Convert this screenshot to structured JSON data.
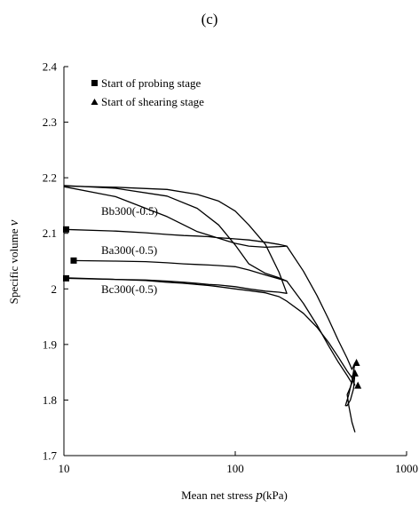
{
  "panel_label": "(c)",
  "chart_data": {
    "type": "line",
    "x_scale": "log",
    "xlim": [
      10,
      1000
    ],
    "ylim": [
      1.7,
      2.4
    ],
    "x_ticks": [
      10,
      100,
      1000
    ],
    "x_tick_labels": [
      "10",
      "100",
      "1000"
    ],
    "y_ticks": [
      1.7,
      1.8,
      1.9,
      2.0,
      2.1,
      2.2,
      2.3,
      2.4
    ],
    "y_tick_labels": [
      "1.7",
      "1.8",
      "1.9",
      "2",
      "2.1",
      "2.2",
      "2.3",
      "2.4"
    ],
    "xlabel": "Mean net stress",
    "xlabel_symbol": "p",
    "xlabel_unit": "(kPa)",
    "ylabel": "Specific volume",
    "ylabel_symbol": "v",
    "grid": false,
    "legend_position": "top-left",
    "legend": [
      {
        "marker": "square",
        "label": "Start of probing stage"
      },
      {
        "marker": "triangle",
        "label": "Start of shearing stage"
      }
    ],
    "annotations": [
      "Bb300(-0.5)",
      "Ba300(-0.5)",
      "Bc300(-0.5)"
    ],
    "series": [
      {
        "x": [
          10,
          20,
          30,
          40,
          50,
          60,
          70,
          80,
          90,
          100,
          120,
          150,
          180,
          200,
          180,
          150,
          120,
          100,
          80,
          60,
          40,
          20,
          10
        ],
        "y": [
          2.107,
          2.104,
          2.101,
          2.098,
          2.096,
          2.095,
          2.094,
          2.092,
          2.091,
          2.09,
          2.088,
          2.084,
          2.08,
          2.077,
          2.076,
          2.075,
          2.077,
          2.082,
          2.091,
          2.103,
          2.13,
          2.166,
          2.184
        ]
      },
      {
        "x": [
          11,
          20,
          30,
          40,
          50,
          60,
          70,
          80,
          100,
          120,
          150,
          180,
          200,
          180,
          150,
          120,
          100,
          80,
          60,
          40,
          20,
          10
        ],
        "y": [
          2.051,
          2.05,
          2.049,
          2.047,
          2.045,
          2.044,
          2.043,
          2.042,
          2.04,
          2.034,
          2.025,
          2.018,
          2.014,
          2.02,
          2.028,
          2.045,
          2.079,
          2.115,
          2.145,
          2.167,
          2.181,
          2.186
        ]
      },
      {
        "x": [
          10,
          20,
          30,
          40,
          50,
          60,
          70,
          80,
          100,
          120,
          150,
          180,
          200,
          180,
          150,
          120,
          100,
          80,
          60,
          40,
          20,
          10
        ],
        "y": [
          2.019,
          2.017,
          2.016,
          2.014,
          2.012,
          2.01,
          2.008,
          2.007,
          2.004,
          2.0,
          1.996,
          1.994,
          1.992,
          2.03,
          2.08,
          2.115,
          2.14,
          2.158,
          2.17,
          2.179,
          2.183,
          2.185
        ]
      },
      {
        "x": [
          10,
          20,
          30,
          40,
          50,
          60,
          70,
          80,
          100,
          120,
          150,
          180,
          200,
          250,
          300,
          350,
          400,
          450,
          480,
          500
        ],
        "y": [
          2.02,
          2.017,
          2.015,
          2.012,
          2.01,
          2.008,
          2.006,
          2.004,
          2.0,
          1.997,
          1.993,
          1.986,
          1.978,
          1.956,
          1.931,
          1.904,
          1.877,
          1.852,
          1.84,
          1.826
        ]
      },
      {
        "x": [
          200,
          250,
          300,
          350,
          400,
          450,
          480,
          500,
          480,
          460,
          440,
          450,
          470,
          490,
          500
        ],
        "y": [
          2.077,
          2.032,
          1.988,
          1.946,
          1.907,
          1.875,
          1.855,
          1.867,
          1.835,
          1.81,
          1.79,
          1.79,
          1.8,
          1.82,
          1.848
        ]
      },
      {
        "x": [
          200,
          250,
          300,
          350,
          400,
          450,
          480,
          500,
          470,
          450,
          460,
          480,
          500
        ],
        "y": [
          2.014,
          1.974,
          1.935,
          1.898,
          1.868,
          1.844,
          1.83,
          1.848,
          1.823,
          1.81,
          1.79,
          1.76,
          1.742
        ]
      }
    ],
    "probing_points": [
      {
        "x": 10.3,
        "y": 2.107
      },
      {
        "x": 11.4,
        "y": 2.051
      },
      {
        "x": 10.3,
        "y": 2.019
      }
    ],
    "shearing_points": [
      {
        "x": 510,
        "y": 1.867
      },
      {
        "x": 500,
        "y": 1.848
      },
      {
        "x": 520,
        "y": 1.826
      }
    ]
  }
}
